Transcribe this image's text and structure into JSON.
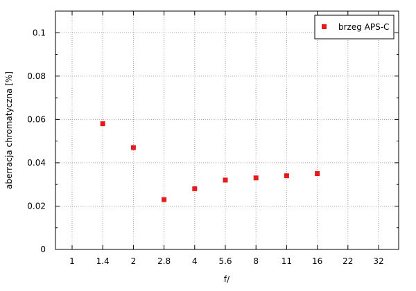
{
  "chart_data": {
    "type": "scatter",
    "title": "",
    "xlabel": "f/",
    "ylabel": "aberracja chromatyczna [%]",
    "x_scale": "log2",
    "x_ticks": [
      "1",
      "1.4",
      "2",
      "2.8",
      "4",
      "5.6",
      "8",
      "11",
      "16",
      "22",
      "32"
    ],
    "ylim": [
      0,
      0.11
    ],
    "y_ticks": [
      "0",
      "0.02",
      "0.04",
      "0.06",
      "0.08",
      "0.1"
    ],
    "y_tick_values": [
      0,
      0.02,
      0.04,
      0.06,
      0.08,
      0.1
    ],
    "grid": true,
    "legend_position": "top-right",
    "series": [
      {
        "name": "brzeg APS-C",
        "color": "#e41a1c",
        "marker": "square",
        "points": [
          {
            "x": "1.4",
            "y": 0.058
          },
          {
            "x": "2",
            "y": 0.047
          },
          {
            "x": "2.8",
            "y": 0.023
          },
          {
            "x": "4",
            "y": 0.028
          },
          {
            "x": "5.6",
            "y": 0.032
          },
          {
            "x": "8",
            "y": 0.033
          },
          {
            "x": "11",
            "y": 0.034
          },
          {
            "x": "16",
            "y": 0.035
          }
        ]
      }
    ]
  }
}
